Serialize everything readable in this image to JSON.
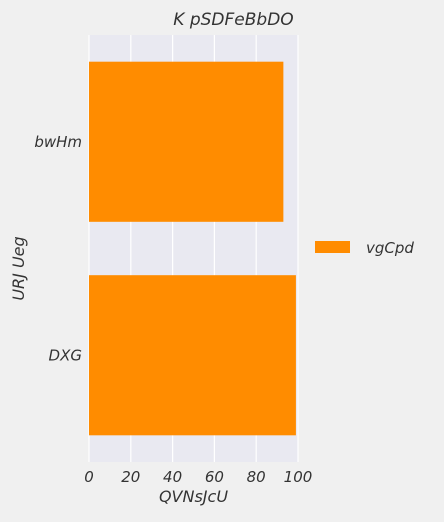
{
  "chart_data": {
    "type": "bar",
    "orientation": "horizontal",
    "title": "K pSDFeBbDO",
    "xlabel": "QVNsJcU",
    "ylabel": "URJ Ueg",
    "categories": [
      "bwHm",
      "DXG"
    ],
    "series": [
      {
        "name": "vgCpd",
        "values": [
          93,
          99
        ],
        "color": "#ff8c00"
      }
    ],
    "xlim": [
      0,
      100
    ],
    "xticks": [
      0,
      20,
      40,
      60,
      80,
      100
    ],
    "grid": true,
    "legend_position": "right",
    "background_color": "#f0f0f0",
    "plot_background_color": "#e9e9f1",
    "grid_color": "#ffffff"
  }
}
